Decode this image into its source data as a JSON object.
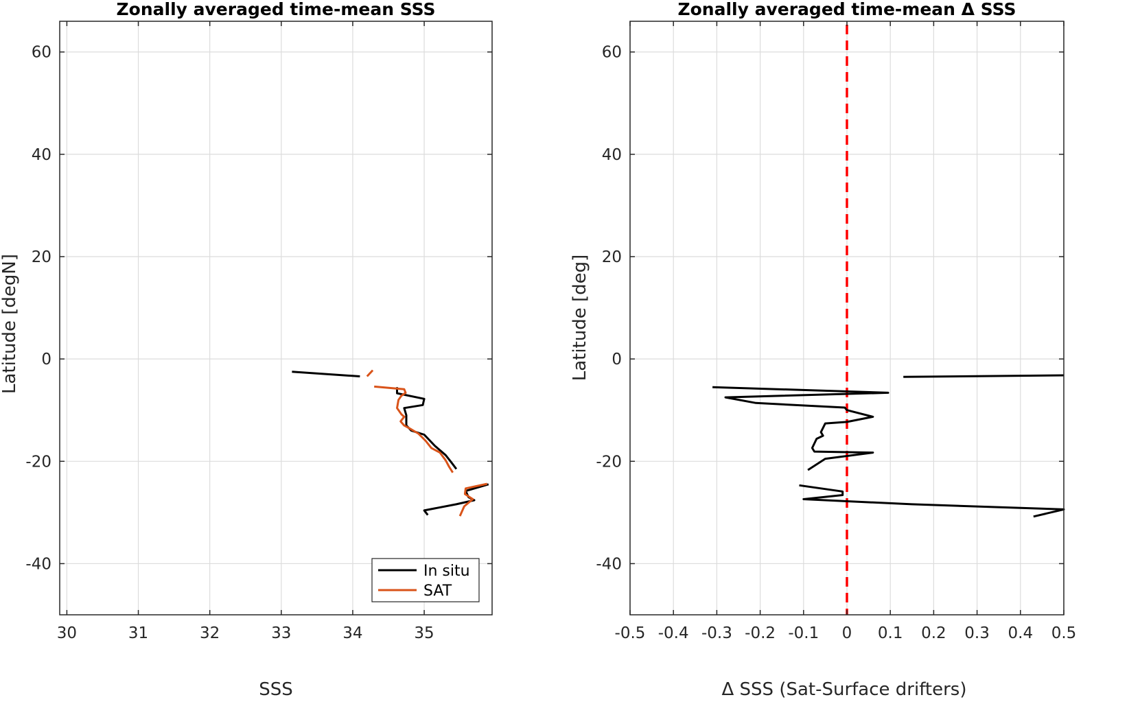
{
  "chart_data": [
    {
      "type": "line",
      "title": "Zonally averaged time-mean SSS",
      "xlabel": "SSS",
      "ylabel": "Latitude [degN]",
      "xlim": [
        29.9,
        35.95
      ],
      "ylim": [
        -50,
        66
      ],
      "xticks": [
        30,
        31,
        32,
        33,
        34,
        35
      ],
      "yticks": [
        -40,
        -20,
        0,
        20,
        40,
        60
      ],
      "grid": true,
      "legend_position": "bottom-right",
      "series": [
        {
          "name": "In situ",
          "color": "#000000",
          "segments": [
            [
              [
                33.15,
                -2.5
              ],
              [
                34.1,
                -3.4
              ]
            ],
            [
              [
                34.62,
                -5.5
              ],
              [
                34.62,
                -6.7
              ],
              [
                35.0,
                -7.8
              ],
              [
                34.98,
                -9.0
              ],
              [
                34.72,
                -9.6
              ],
              [
                34.75,
                -11.0
              ],
              [
                34.75,
                -13.0
              ],
              [
                34.82,
                -14.0
              ],
              [
                35.0,
                -14.8
              ],
              [
                35.15,
                -17.0
              ],
              [
                35.3,
                -18.8
              ],
              [
                35.38,
                -20.2
              ],
              [
                35.45,
                -21.5
              ]
            ],
            [
              [
                35.9,
                -24.5
              ],
              [
                35.58,
                -25.8
              ],
              [
                35.62,
                -27.0
              ],
              [
                35.7,
                -27.6
              ],
              [
                35.45,
                -28.4
              ],
              [
                35.0,
                -29.6
              ],
              [
                35.05,
                -30.5
              ]
            ]
          ]
        },
        {
          "name": "SAT",
          "color": "#D95319",
          "segments": [
            [
              [
                34.2,
                -3.4
              ],
              [
                34.28,
                -2.2
              ]
            ],
            [
              [
                34.3,
                -5.4
              ],
              [
                34.72,
                -5.9
              ],
              [
                34.74,
                -6.6
              ],
              [
                34.68,
                -7.2
              ],
              [
                34.64,
                -8.0
              ],
              [
                34.62,
                -9.6
              ],
              [
                34.68,
                -10.8
              ],
              [
                34.72,
                -11.3
              ],
              [
                34.67,
                -12.2
              ],
              [
                34.72,
                -13.0
              ],
              [
                34.8,
                -13.6
              ],
              [
                34.92,
                -14.6
              ],
              [
                35.02,
                -16.0
              ],
              [
                35.1,
                -17.4
              ],
              [
                35.22,
                -18.3
              ],
              [
                35.3,
                -19.8
              ],
              [
                35.35,
                -21.1
              ],
              [
                35.4,
                -22.2
              ]
            ],
            [
              [
                35.88,
                -24.4
              ],
              [
                35.58,
                -25.3
              ],
              [
                35.57,
                -26.4
              ],
              [
                35.68,
                -27.4
              ],
              [
                35.56,
                -28.8
              ],
              [
                35.5,
                -30.7
              ]
            ]
          ]
        }
      ],
      "legend": [
        "In situ",
        "SAT"
      ]
    },
    {
      "type": "line",
      "title": "Zonally averaged time-mean Δ SSS",
      "xlabel": "Δ SSS (Sat-Surface drifters)",
      "ylabel": "Latitude [deg]",
      "xlim": [
        -0.5,
        0.5
      ],
      "ylim": [
        -50,
        66
      ],
      "xticks": [
        -0.5,
        -0.4,
        -0.3,
        -0.2,
        -0.1,
        0,
        0.1,
        0.2,
        0.3,
        0.4,
        0.5
      ],
      "xticklabels": [
        "-0.5",
        "-0.4",
        "-0.3",
        "-0.2",
        "-0.1",
        "0",
        "0.1",
        "0.2",
        "0.3",
        "0.4",
        "0.5"
      ],
      "yticks": [
        -40,
        -20,
        0,
        20,
        40,
        60
      ],
      "grid": true,
      "reference_line": {
        "x": 0,
        "color": "#FF0000",
        "style": "dashed"
      },
      "series": [
        {
          "color": "#000000",
          "segments": [
            [
              [
                0.13,
                -3.5
              ],
              [
                0.5,
                -3.2
              ]
            ],
            [
              [
                -0.31,
                -5.5
              ],
              [
                0.095,
                -6.6
              ],
              [
                -0.28,
                -7.5
              ],
              [
                -0.21,
                -8.6
              ],
              [
                -0.005,
                -9.5
              ],
              [
                0.0,
                -10.0
              ],
              [
                0.06,
                -11.3
              ],
              [
                0.0,
                -12.3
              ],
              [
                -0.05,
                -12.6
              ],
              [
                -0.06,
                -14.3
              ],
              [
                -0.055,
                -15.0
              ],
              [
                -0.07,
                -15.6
              ],
              [
                -0.08,
                -17.4
              ],
              [
                -0.075,
                -18.1
              ],
              [
                0.06,
                -18.3
              ],
              [
                -0.05,
                -19.5
              ],
              [
                -0.09,
                -21.7
              ]
            ],
            [
              [
                -0.11,
                -24.7
              ],
              [
                -0.01,
                -25.9
              ],
              [
                -0.01,
                -26.6
              ],
              [
                -0.1,
                -27.4
              ],
              [
                0.15,
                -28.4
              ],
              [
                0.5,
                -29.4
              ],
              [
                0.43,
                -30.8
              ]
            ]
          ]
        }
      ]
    }
  ]
}
